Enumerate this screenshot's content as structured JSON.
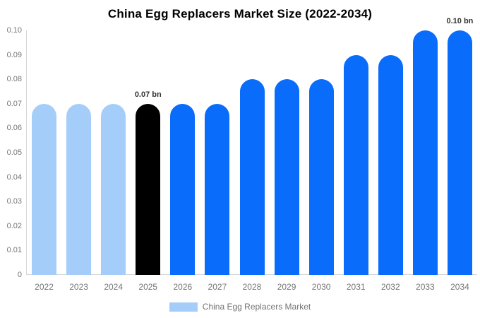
{
  "chart_data": {
    "type": "bar",
    "title": "China Egg Replacers Market Size (2022-2034)",
    "categories": [
      "2022",
      "2023",
      "2024",
      "2025",
      "2026",
      "2027",
      "2028",
      "2029",
      "2030",
      "2031",
      "2032",
      "2033",
      "2034"
    ],
    "values": [
      0.07,
      0.07,
      0.07,
      0.07,
      0.07,
      0.07,
      0.08,
      0.08,
      0.08,
      0.09,
      0.09,
      0.1,
      0.1
    ],
    "bar_color_keys": [
      "light",
      "light",
      "light",
      "highlight",
      "primary",
      "primary",
      "primary",
      "primary",
      "primary",
      "primary",
      "primary",
      "primary",
      "primary"
    ],
    "xlabel": "",
    "ylabel": "",
    "ylim": [
      0,
      0.1
    ],
    "yticks": [
      "0",
      "0.01",
      "0.02",
      "0.03",
      "0.04",
      "0.05",
      "0.06",
      "0.07",
      "0.08",
      "0.09",
      "0.10"
    ],
    "grid": false,
    "legend": {
      "position": "bottom",
      "items": [
        {
          "label": "China Egg Replacers Market",
          "color_key": "light"
        }
      ]
    },
    "annotations": [
      {
        "category": "2025",
        "text": "0.07 bn"
      },
      {
        "category": "2034",
        "text": "0.10 bn"
      }
    ],
    "colors": {
      "light": "#A4CDFA",
      "highlight": "#000000",
      "primary": "#0A6CFA"
    }
  },
  "ui": {
    "axis_color": "#D6D6D6",
    "tick_text_color": "#757575",
    "annotation_text_color": "#333333",
    "background": "#FFFFFF"
  }
}
